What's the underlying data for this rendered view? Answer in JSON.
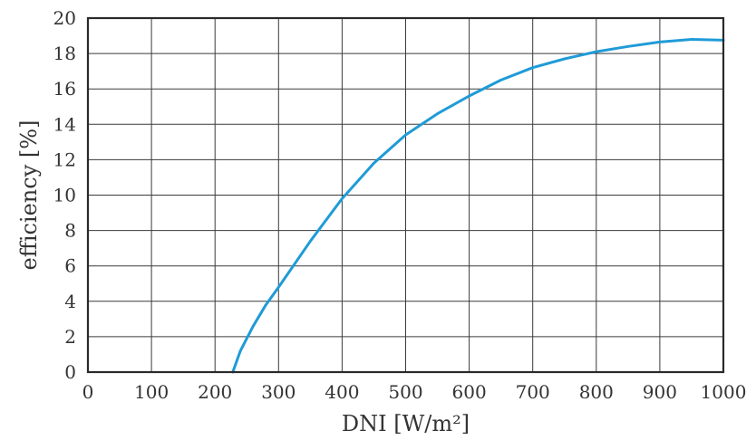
{
  "chart_data": {
    "type": "line",
    "title": "",
    "xlabel": "DNI [W/m²]",
    "ylabel": "efficiency [%]",
    "xlim": [
      0,
      1000
    ],
    "ylim": [
      0,
      20
    ],
    "x_ticks": [
      0,
      100,
      200,
      300,
      400,
      500,
      600,
      700,
      800,
      900,
      1000
    ],
    "y_ticks": [
      0,
      2,
      4,
      6,
      8,
      10,
      12,
      14,
      16,
      18,
      20
    ],
    "x_tick_labels": [
      "0",
      "100",
      "200",
      "300",
      "400",
      "500",
      "600",
      "700",
      "800",
      "900",
      "1000"
    ],
    "y_tick_labels": [
      "0",
      "2",
      "4",
      "6",
      "8",
      "10",
      "12",
      "14",
      "16",
      "18",
      "20"
    ],
    "grid": true,
    "legend": "none",
    "series": [
      {
        "color": "#1f9bd7",
        "x": [
          228,
          240,
          260,
          280,
          300,
          350,
          400,
          450,
          500,
          550,
          600,
          650,
          700,
          750,
          800,
          850,
          900,
          950,
          1000
        ],
        "y": [
          0,
          1.2,
          2.6,
          3.8,
          4.8,
          7.4,
          9.8,
          11.8,
          13.4,
          14.6,
          15.6,
          16.5,
          17.2,
          17.7,
          18.1,
          18.4,
          18.65,
          18.8,
          18.75
        ]
      }
    ]
  }
}
